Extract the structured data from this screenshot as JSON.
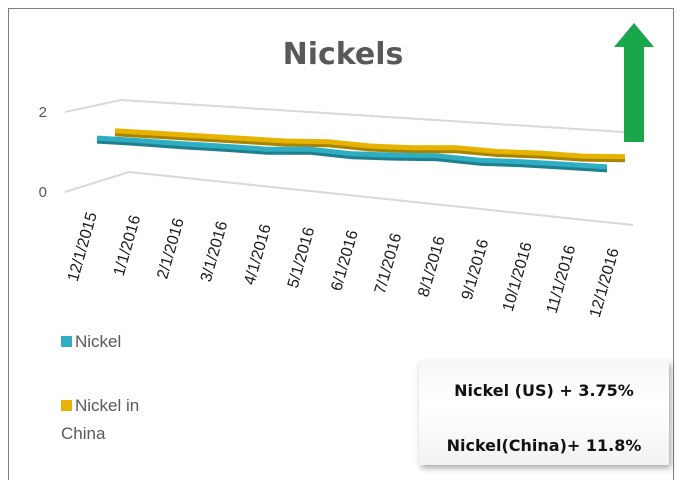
{
  "chart_data": {
    "type": "line",
    "title": "Nickels",
    "categories": [
      "12/1/2015",
      "1/1/2016",
      "2/1/2016",
      "3/1/2016",
      "4/1/2016",
      "5/1/2016",
      "6/1/2016",
      "7/1/2016",
      "8/1/2016",
      "9/1/2016",
      "10/1/2016",
      "11/1/2016",
      "12/1/2016"
    ],
    "y_ticks": [
      "2",
      "0"
    ],
    "ylim": [
      0,
      2
    ],
    "series": [
      {
        "name": "Nickel",
        "color": "#2eaec3",
        "values": [
          1.02,
          0.99,
          0.95,
          0.92,
          0.88,
          0.91,
          0.83,
          0.83,
          0.84,
          0.77,
          0.76,
          0.73,
          0.7
        ]
      },
      {
        "name": "Nickel in China",
        "color": "#e6b400",
        "values": [
          1.05,
          1.02,
          0.99,
          0.96,
          0.93,
          0.94,
          0.87,
          0.86,
          0.89,
          0.83,
          0.82,
          0.78,
          0.79
        ]
      }
    ],
    "legend_position": "left",
    "three_d": true
  },
  "legend": {
    "items": [
      {
        "label": "Nickel",
        "color": "#2eaec3"
      },
      {
        "label_lines": [
          "Nickel in",
          "China"
        ],
        "color": "#e6b400"
      }
    ]
  },
  "callout": {
    "line_1": "Nickel (US) + 3.75%",
    "line_2": "Nickel(China)+ 11.8%"
  },
  "trend_arrow": {
    "direction": "up",
    "color": "#1aa64a"
  }
}
